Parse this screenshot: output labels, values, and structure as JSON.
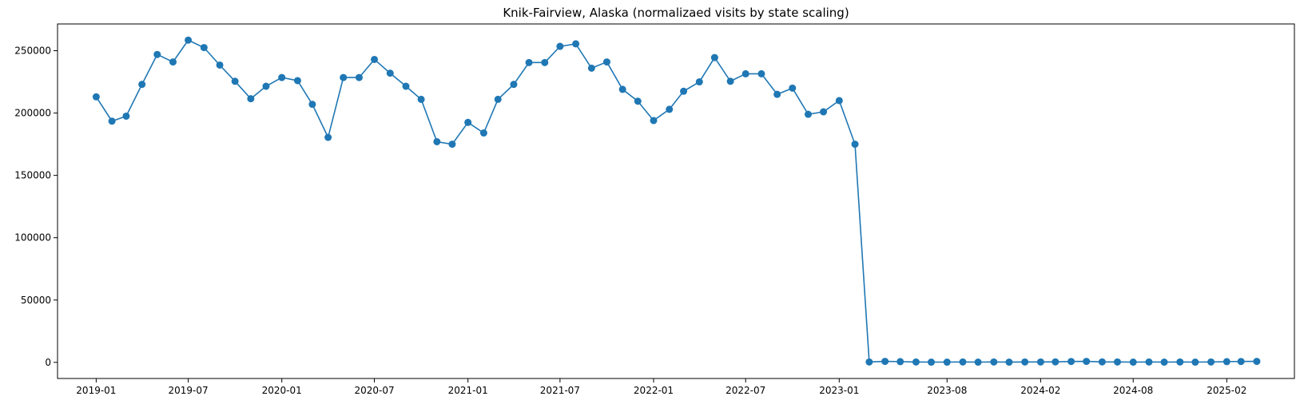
{
  "chart_data": {
    "type": "line",
    "title": "Knik-Fairview, Alaska (normalizaed visits by state scaling)",
    "xlabel": "",
    "ylabel": "",
    "x_range": [
      "2018-10-17",
      "2025-06-14"
    ],
    "ylim": [
      -12927,
      271472
    ],
    "grid": false,
    "marker": "circle",
    "color": "#1f77b4",
    "y_ticks": [
      0,
      50000,
      100000,
      150000,
      200000,
      250000
    ],
    "y_tick_labels": [
      "0",
      "50000",
      "100000",
      "150000",
      "200000",
      "250000"
    ],
    "x_ticks": [
      "2019-01-01",
      "2019-07-01",
      "2020-01-01",
      "2020-07-01",
      "2021-01-01",
      "2021-07-01",
      "2022-01-01",
      "2022-07-01",
      "2023-01-01",
      "2023-08-01",
      "2024-02-01",
      "2024-08-01",
      "2025-02-01"
    ],
    "x_tick_labels": [
      "2019-01",
      "2019-07",
      "2020-01",
      "2020-07",
      "2021-01",
      "2021-07",
      "2022-01",
      "2022-07",
      "2023-01",
      "2023-08",
      "2024-02",
      "2024-08",
      "2025-02"
    ],
    "series": [
      {
        "x": [
          "2019-01-01",
          "2019-02-01",
          "2019-03-01",
          "2019-04-01",
          "2019-05-01",
          "2019-06-01",
          "2019-07-01",
          "2019-08-01",
          "2019-09-01",
          "2019-10-01",
          "2019-11-01",
          "2019-12-01",
          "2020-01-01",
          "2020-02-01",
          "2020-03-01",
          "2020-04-01",
          "2020-05-01",
          "2020-06-01",
          "2020-07-01",
          "2020-08-01",
          "2020-09-01",
          "2020-10-01",
          "2020-11-01",
          "2020-12-01",
          "2021-01-01",
          "2021-02-01",
          "2021-03-01",
          "2021-04-01",
          "2021-05-01",
          "2021-06-01",
          "2021-07-01",
          "2021-08-01",
          "2021-09-01",
          "2021-10-01",
          "2021-11-01",
          "2021-12-01",
          "2022-01-01",
          "2022-02-01",
          "2022-03-01",
          "2022-04-01",
          "2022-05-01",
          "2022-06-01",
          "2022-07-01",
          "2022-08-01",
          "2022-09-01",
          "2022-10-01",
          "2022-11-01",
          "2022-12-01",
          "2023-01-01",
          "2023-02-01",
          "2023-03-01",
          "2023-04-01",
          "2023-05-01",
          "2023-06-01",
          "2023-07-01",
          "2023-08-01",
          "2023-09-01",
          "2023-10-01",
          "2023-11-01",
          "2023-12-01",
          "2024-01-01",
          "2024-02-01",
          "2024-03-01",
          "2024-04-01",
          "2024-05-01",
          "2024-06-01",
          "2024-07-01",
          "2024-08-01",
          "2024-09-01",
          "2024-10-01",
          "2024-11-01",
          "2024-12-01",
          "2025-01-01",
          "2025-02-01",
          "2025-03-01",
          "2025-04-01"
        ],
        "y": [
          213000,
          193500,
          197500,
          223000,
          247000,
          241000,
          258500,
          252500,
          238500,
          225500,
          211500,
          221500,
          228500,
          226000,
          207000,
          180500,
          228500,
          228500,
          243000,
          232000,
          221500,
          211000,
          177000,
          175000,
          192500,
          184000,
          211000,
          223000,
          240500,
          240500,
          253500,
          255500,
          236000,
          241000,
          219000,
          209500,
          194000,
          203000,
          217500,
          225000,
          244500,
          225500,
          231500,
          231500,
          215000,
          220000,
          199000,
          201000,
          210000,
          175000,
          300,
          800,
          600,
          300,
          200,
          200,
          300,
          200,
          300,
          200,
          300,
          300,
          400,
          700,
          800,
          400,
          300,
          200,
          300,
          200,
          300,
          200,
          300,
          600,
          700,
          800
        ]
      }
    ]
  }
}
